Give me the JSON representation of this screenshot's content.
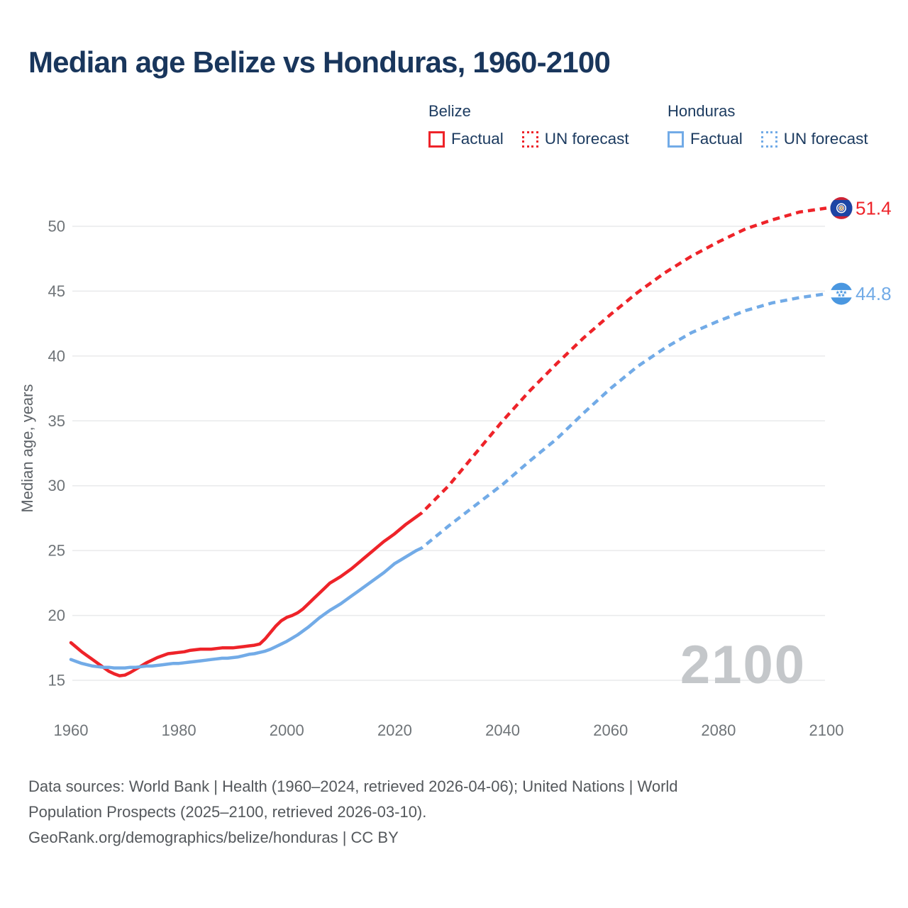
{
  "header": {
    "title": "Median age Belize vs Honduras, 1960-2100"
  },
  "legend": {
    "belize": {
      "label": "Belize",
      "factual": "Factual",
      "forecast": "UN forecast"
    },
    "honduras": {
      "label": "Honduras",
      "factual": "Factual",
      "forecast": "UN forecast"
    }
  },
  "colors": {
    "belize_red": "#ee2329",
    "honduras_blue": "#72abe7",
    "title_navy": "#19365c",
    "tick_gray": "#6f7478",
    "gridline": "#e9eaeb",
    "watermark_gray": "#c4c7ca",
    "footer_gray": "#54585c"
  },
  "watermark": "2100",
  "end_labels": {
    "belize": "51.4",
    "honduras": "44.8"
  },
  "footer": {
    "line1": "Data sources: World Bank | Health (1960–2024, retrieved 2026-04-06); United Nations | World",
    "line2": "Population Prospects (2025–2100, retrieved 2026-03-10).",
    "line3": "GeoRank.org/demographics/belize/honduras | CC BY"
  },
  "chart_data": {
    "type": "line",
    "title": "Median age Belize vs Honduras, 1960-2100",
    "xlabel": "",
    "ylabel": "Median age, years",
    "xlim": [
      1960,
      2100
    ],
    "ylim": [
      15,
      50
    ],
    "x_ticks": [
      1960,
      1980,
      2000,
      2020,
      2040,
      2060,
      2080,
      2100
    ],
    "y_ticks": [
      15,
      20,
      25,
      30,
      35,
      40,
      45,
      50
    ],
    "grid": "horizontal",
    "legend_position": "top",
    "series": [
      {
        "name": "Belize Factual",
        "color": "#ee2329",
        "style": "solid",
        "points": [
          [
            1960,
            17.9
          ],
          [
            1961,
            17.55
          ],
          [
            1962,
            17.2
          ],
          [
            1963,
            16.9
          ],
          [
            1964,
            16.6
          ],
          [
            1965,
            16.3
          ],
          [
            1966,
            16.0
          ],
          [
            1967,
            15.7
          ],
          [
            1968,
            15.5
          ],
          [
            1969,
            15.35
          ],
          [
            1970,
            15.4
          ],
          [
            1971,
            15.6
          ],
          [
            1972,
            15.85
          ],
          [
            1973,
            16.1
          ],
          [
            1974,
            16.35
          ],
          [
            1975,
            16.55
          ],
          [
            1976,
            16.75
          ],
          [
            1977,
            16.9
          ],
          [
            1978,
            17.05
          ],
          [
            1979,
            17.1
          ],
          [
            1980,
            17.15
          ],
          [
            1981,
            17.2
          ],
          [
            1982,
            17.3
          ],
          [
            1983,
            17.35
          ],
          [
            1984,
            17.4
          ],
          [
            1985,
            17.4
          ],
          [
            1986,
            17.4
          ],
          [
            1987,
            17.45
          ],
          [
            1988,
            17.5
          ],
          [
            1989,
            17.5
          ],
          [
            1990,
            17.5
          ],
          [
            1991,
            17.55
          ],
          [
            1992,
            17.6
          ],
          [
            1993,
            17.65
          ],
          [
            1994,
            17.7
          ],
          [
            1995,
            17.8
          ],
          [
            1996,
            18.2
          ],
          [
            1997,
            18.7
          ],
          [
            1998,
            19.2
          ],
          [
            1999,
            19.6
          ],
          [
            2000,
            19.85
          ],
          [
            2001,
            20.0
          ],
          [
            2002,
            20.2
          ],
          [
            2003,
            20.5
          ],
          [
            2004,
            20.9
          ],
          [
            2005,
            21.3
          ],
          [
            2006,
            21.7
          ],
          [
            2007,
            22.1
          ],
          [
            2008,
            22.5
          ],
          [
            2009,
            22.75
          ],
          [
            2010,
            23.0
          ],
          [
            2011,
            23.3
          ],
          [
            2012,
            23.6
          ],
          [
            2013,
            23.95
          ],
          [
            2014,
            24.3
          ],
          [
            2015,
            24.65
          ],
          [
            2016,
            25.0
          ],
          [
            2017,
            25.35
          ],
          [
            2018,
            25.7
          ],
          [
            2019,
            26.0
          ],
          [
            2020,
            26.3
          ],
          [
            2021,
            26.65
          ],
          [
            2022,
            27.0
          ],
          [
            2023,
            27.3
          ],
          [
            2024,
            27.6
          ]
        ]
      },
      {
        "name": "Belize UN forecast",
        "color": "#ee2329",
        "style": "dashed",
        "points": [
          [
            2024,
            27.6
          ],
          [
            2025,
            27.9
          ],
          [
            2030,
            30.0
          ],
          [
            2035,
            32.5
          ],
          [
            2040,
            35.0
          ],
          [
            2045,
            37.3
          ],
          [
            2050,
            39.4
          ],
          [
            2055,
            41.4
          ],
          [
            2060,
            43.2
          ],
          [
            2065,
            44.9
          ],
          [
            2070,
            46.4
          ],
          [
            2075,
            47.7
          ],
          [
            2080,
            48.8
          ],
          [
            2085,
            49.8
          ],
          [
            2090,
            50.5
          ],
          [
            2095,
            51.1
          ],
          [
            2100,
            51.4
          ]
        ]
      },
      {
        "name": "Honduras Factual",
        "color": "#72abe7",
        "style": "solid",
        "points": [
          [
            1960,
            16.6
          ],
          [
            1961,
            16.45
          ],
          [
            1962,
            16.3
          ],
          [
            1963,
            16.2
          ],
          [
            1964,
            16.1
          ],
          [
            1965,
            16.05
          ],
          [
            1966,
            16.0
          ],
          [
            1967,
            16.0
          ],
          [
            1968,
            15.95
          ],
          [
            1969,
            15.95
          ],
          [
            1970,
            15.95
          ],
          [
            1971,
            16.0
          ],
          [
            1972,
            16.0
          ],
          [
            1973,
            16.05
          ],
          [
            1974,
            16.1
          ],
          [
            1975,
            16.1
          ],
          [
            1976,
            16.15
          ],
          [
            1977,
            16.2
          ],
          [
            1978,
            16.25
          ],
          [
            1979,
            16.3
          ],
          [
            1980,
            16.3
          ],
          [
            1981,
            16.35
          ],
          [
            1982,
            16.4
          ],
          [
            1983,
            16.45
          ],
          [
            1984,
            16.5
          ],
          [
            1985,
            16.55
          ],
          [
            1986,
            16.6
          ],
          [
            1987,
            16.65
          ],
          [
            1988,
            16.7
          ],
          [
            1989,
            16.7
          ],
          [
            1990,
            16.75
          ],
          [
            1991,
            16.8
          ],
          [
            1992,
            16.9
          ],
          [
            1993,
            17.0
          ],
          [
            1994,
            17.05
          ],
          [
            1995,
            17.15
          ],
          [
            1996,
            17.25
          ],
          [
            1997,
            17.4
          ],
          [
            1998,
            17.6
          ],
          [
            1999,
            17.8
          ],
          [
            2000,
            18.0
          ],
          [
            2001,
            18.25
          ],
          [
            2002,
            18.5
          ],
          [
            2003,
            18.8
          ],
          [
            2004,
            19.1
          ],
          [
            2005,
            19.45
          ],
          [
            2006,
            19.8
          ],
          [
            2007,
            20.1
          ],
          [
            2008,
            20.4
          ],
          [
            2009,
            20.65
          ],
          [
            2010,
            20.9
          ],
          [
            2011,
            21.2
          ],
          [
            2012,
            21.5
          ],
          [
            2013,
            21.8
          ],
          [
            2014,
            22.1
          ],
          [
            2015,
            22.4
          ],
          [
            2016,
            22.7
          ],
          [
            2017,
            23.0
          ],
          [
            2018,
            23.3
          ],
          [
            2019,
            23.65
          ],
          [
            2020,
            24.0
          ],
          [
            2021,
            24.25
          ],
          [
            2022,
            24.5
          ],
          [
            2023,
            24.75
          ],
          [
            2024,
            25.0
          ]
        ]
      },
      {
        "name": "Honduras UN forecast",
        "color": "#72abe7",
        "style": "dashed",
        "points": [
          [
            2024,
            25.0
          ],
          [
            2025,
            25.2
          ],
          [
            2030,
            26.9
          ],
          [
            2035,
            28.5
          ],
          [
            2040,
            30.1
          ],
          [
            2045,
            31.9
          ],
          [
            2050,
            33.6
          ],
          [
            2055,
            35.6
          ],
          [
            2060,
            37.5
          ],
          [
            2065,
            39.2
          ],
          [
            2070,
            40.6
          ],
          [
            2075,
            41.8
          ],
          [
            2080,
            42.7
          ],
          [
            2085,
            43.5
          ],
          [
            2090,
            44.1
          ],
          [
            2095,
            44.5
          ],
          [
            2100,
            44.8
          ]
        ]
      }
    ]
  }
}
